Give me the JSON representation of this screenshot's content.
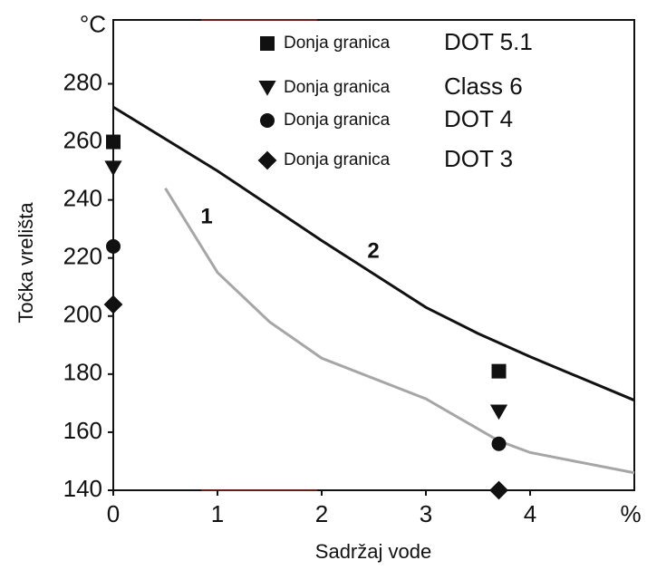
{
  "chart_data": {
    "type": "line",
    "y_label": "Točka vrelišta",
    "x_label": "Sadržaj vode",
    "xlim": [
      0,
      5
    ],
    "xticks": [
      0,
      1,
      2,
      3,
      4,
      {
        "value": 5,
        "label": "%"
      }
    ],
    "ylim": [
      140,
      302
    ],
    "yticks": [
      140,
      160,
      180,
      200,
      220,
      240,
      260,
      280,
      {
        "value": 300,
        "label": "°C"
      }
    ],
    "legend_prefix": "Donja granica",
    "series": [
      {
        "name": "2",
        "kind": "line",
        "color": "#111111",
        "x": [
          0,
          1,
          2,
          3,
          3.5,
          4,
          5
        ],
        "values": [
          272,
          250,
          226,
          203,
          194,
          186,
          171
        ]
      },
      {
        "name": "1",
        "kind": "line",
        "color": "#a6a6a6",
        "x": [
          0.5,
          1,
          1.5,
          2,
          3,
          3.7,
          4,
          5
        ],
        "values": [
          244,
          215,
          198,
          185.5,
          171.5,
          157,
          153,
          146
        ]
      },
      {
        "name": "DOT 5.1",
        "kind": "scatter",
        "marker": "square",
        "color": "#111111",
        "x": [
          0,
          3.7
        ],
        "values": [
          260,
          181
        ]
      },
      {
        "name": "Class 6",
        "kind": "scatter",
        "marker": "triangle",
        "color": "#111111",
        "x": [
          0,
          3.7
        ],
        "values": [
          251,
          167
        ]
      },
      {
        "name": "DOT 4",
        "kind": "scatter",
        "marker": "circle",
        "color": "#111111",
        "x": [
          0,
          3.7
        ],
        "values": [
          224,
          156
        ]
      },
      {
        "name": "DOT 3",
        "kind": "scatter",
        "marker": "diamond",
        "color": "#111111",
        "x": [
          0,
          3.7
        ],
        "values": [
          204,
          140
        ]
      }
    ]
  }
}
